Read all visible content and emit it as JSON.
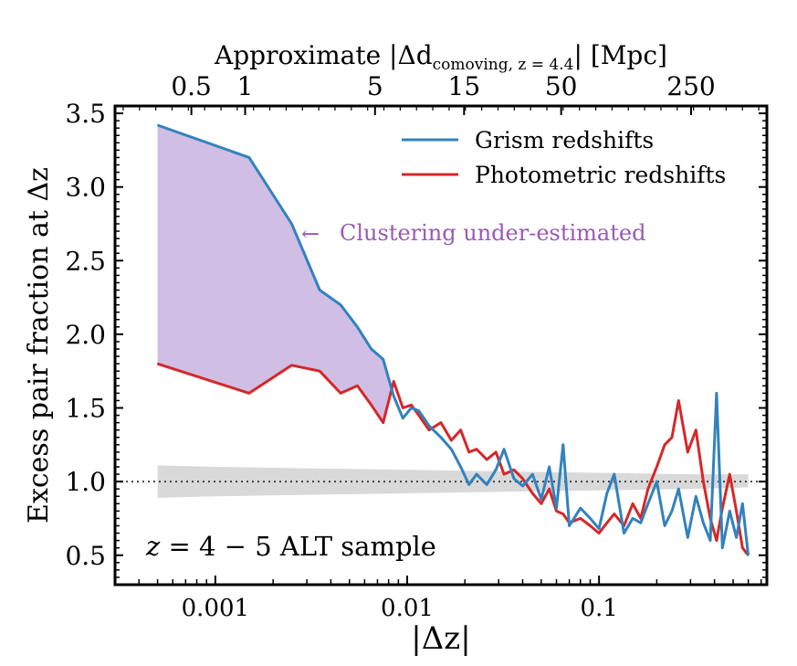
{
  "chart_data": {
    "type": "line",
    "xscale": "log",
    "xlabel": "|Δz|",
    "ylabel": "Excess pair fraction at Δz",
    "top_axis": {
      "label_pre": "Approximate |Δd",
      "label_sub": "comoving, z = 4.4",
      "label_post": "| [Mpc]",
      "ticks": [
        {
          "label": "0.5",
          "dz": 0.00075
        },
        {
          "label": "1",
          "dz": 0.00143
        },
        {
          "label": "5",
          "dz": 0.0068
        },
        {
          "label": "15",
          "dz": 0.0198
        },
        {
          "label": "50",
          "dz": 0.0635
        },
        {
          "label": "250",
          "dz": 0.302
        }
      ]
    },
    "xlim": [
      0.0003,
      0.75
    ],
    "ylim": [
      0.3,
      3.55
    ],
    "x_ticks": [
      {
        "value": 0.001,
        "label": "0.001"
      },
      {
        "value": 0.01,
        "label": "0.01"
      },
      {
        "value": 0.1,
        "label": "0.1"
      }
    ],
    "y_ticks": [
      {
        "value": 0.5,
        "label": "0.5"
      },
      {
        "value": 1.0,
        "label": "1.0"
      },
      {
        "value": 1.5,
        "label": "1.5"
      },
      {
        "value": 2.0,
        "label": "2.0"
      },
      {
        "value": 2.5,
        "label": "2.5"
      },
      {
        "value": 3.0,
        "label": "3.0"
      },
      {
        "value": 3.5,
        "label": "3.5"
      }
    ],
    "reference_line": {
      "y": 1.0,
      "style": "dotted"
    },
    "null_band": {
      "x": [
        0.0005,
        0.001,
        0.003,
        0.01,
        0.03,
        0.1,
        0.3,
        0.6
      ],
      "low": [
        0.89,
        0.9,
        0.91,
        0.92,
        0.93,
        0.94,
        0.95,
        0.96
      ],
      "high": [
        1.11,
        1.1,
        1.09,
        1.08,
        1.07,
        1.06,
        1.05,
        1.05
      ]
    },
    "annotation": {
      "text": "Clustering under-estimated",
      "arrow": "←",
      "color": "#9b59b6"
    },
    "sample_label": {
      "italic_part": "z",
      "text": " = 4 − 5 ALT sample"
    },
    "legend": {
      "position": "top-right"
    },
    "series": [
      {
        "name": "Grism redshifts",
        "color": "#3182bd",
        "x": [
          0.0005,
          0.0015,
          0.0025,
          0.0035,
          0.0045,
          0.0055,
          0.0065,
          0.0075,
          0.0085,
          0.0095,
          0.0105,
          0.0115,
          0.013,
          0.015,
          0.017,
          0.019,
          0.021,
          0.023,
          0.026,
          0.029,
          0.032,
          0.036,
          0.04,
          0.045,
          0.05,
          0.055,
          0.06,
          0.065,
          0.07,
          0.08,
          0.09,
          0.1,
          0.11,
          0.12,
          0.135,
          0.15,
          0.165,
          0.18,
          0.2,
          0.22,
          0.24,
          0.26,
          0.29,
          0.32,
          0.35,
          0.38,
          0.41,
          0.44,
          0.48,
          0.52,
          0.56,
          0.6
        ],
        "y": [
          3.42,
          3.2,
          2.75,
          2.3,
          2.2,
          2.05,
          1.9,
          1.83,
          1.58,
          1.43,
          1.5,
          1.48,
          1.38,
          1.3,
          1.22,
          1.1,
          0.98,
          1.05,
          0.98,
          1.08,
          1.22,
          1.02,
          0.97,
          1.05,
          0.88,
          1.1,
          0.82,
          1.25,
          0.7,
          0.82,
          0.75,
          0.68,
          0.92,
          1.05,
          0.65,
          0.75,
          0.72,
          0.85,
          1.0,
          0.7,
          0.8,
          0.95,
          0.62,
          0.9,
          0.72,
          0.6,
          1.6,
          0.55,
          0.8,
          0.62,
          0.85,
          0.5
        ]
      },
      {
        "name": "Photometric redshifts",
        "color": "#d62728",
        "x": [
          0.0005,
          0.0015,
          0.0025,
          0.0035,
          0.0045,
          0.0055,
          0.0065,
          0.0075,
          0.0085,
          0.0095,
          0.0105,
          0.0115,
          0.013,
          0.015,
          0.017,
          0.019,
          0.021,
          0.023,
          0.026,
          0.029,
          0.032,
          0.036,
          0.04,
          0.045,
          0.05,
          0.055,
          0.06,
          0.065,
          0.07,
          0.08,
          0.09,
          0.1,
          0.11,
          0.12,
          0.135,
          0.15,
          0.165,
          0.18,
          0.2,
          0.22,
          0.24,
          0.26,
          0.29,
          0.32,
          0.35,
          0.38,
          0.41,
          0.44,
          0.48,
          0.52,
          0.56,
          0.6
        ],
        "y": [
          1.8,
          1.6,
          1.79,
          1.75,
          1.6,
          1.65,
          1.52,
          1.4,
          1.68,
          1.5,
          1.52,
          1.45,
          1.35,
          1.4,
          1.28,
          1.35,
          1.2,
          1.22,
          1.15,
          1.2,
          1.05,
          1.08,
          1.02,
          0.92,
          0.85,
          0.95,
          0.8,
          0.78,
          0.72,
          0.75,
          0.7,
          0.65,
          0.72,
          0.78,
          0.7,
          0.85,
          0.75,
          0.95,
          1.1,
          1.25,
          1.3,
          1.55,
          1.2,
          1.35,
          1.0,
          0.75,
          0.6,
          0.82,
          1.05,
          0.8,
          0.55,
          0.5
        ]
      }
    ]
  }
}
